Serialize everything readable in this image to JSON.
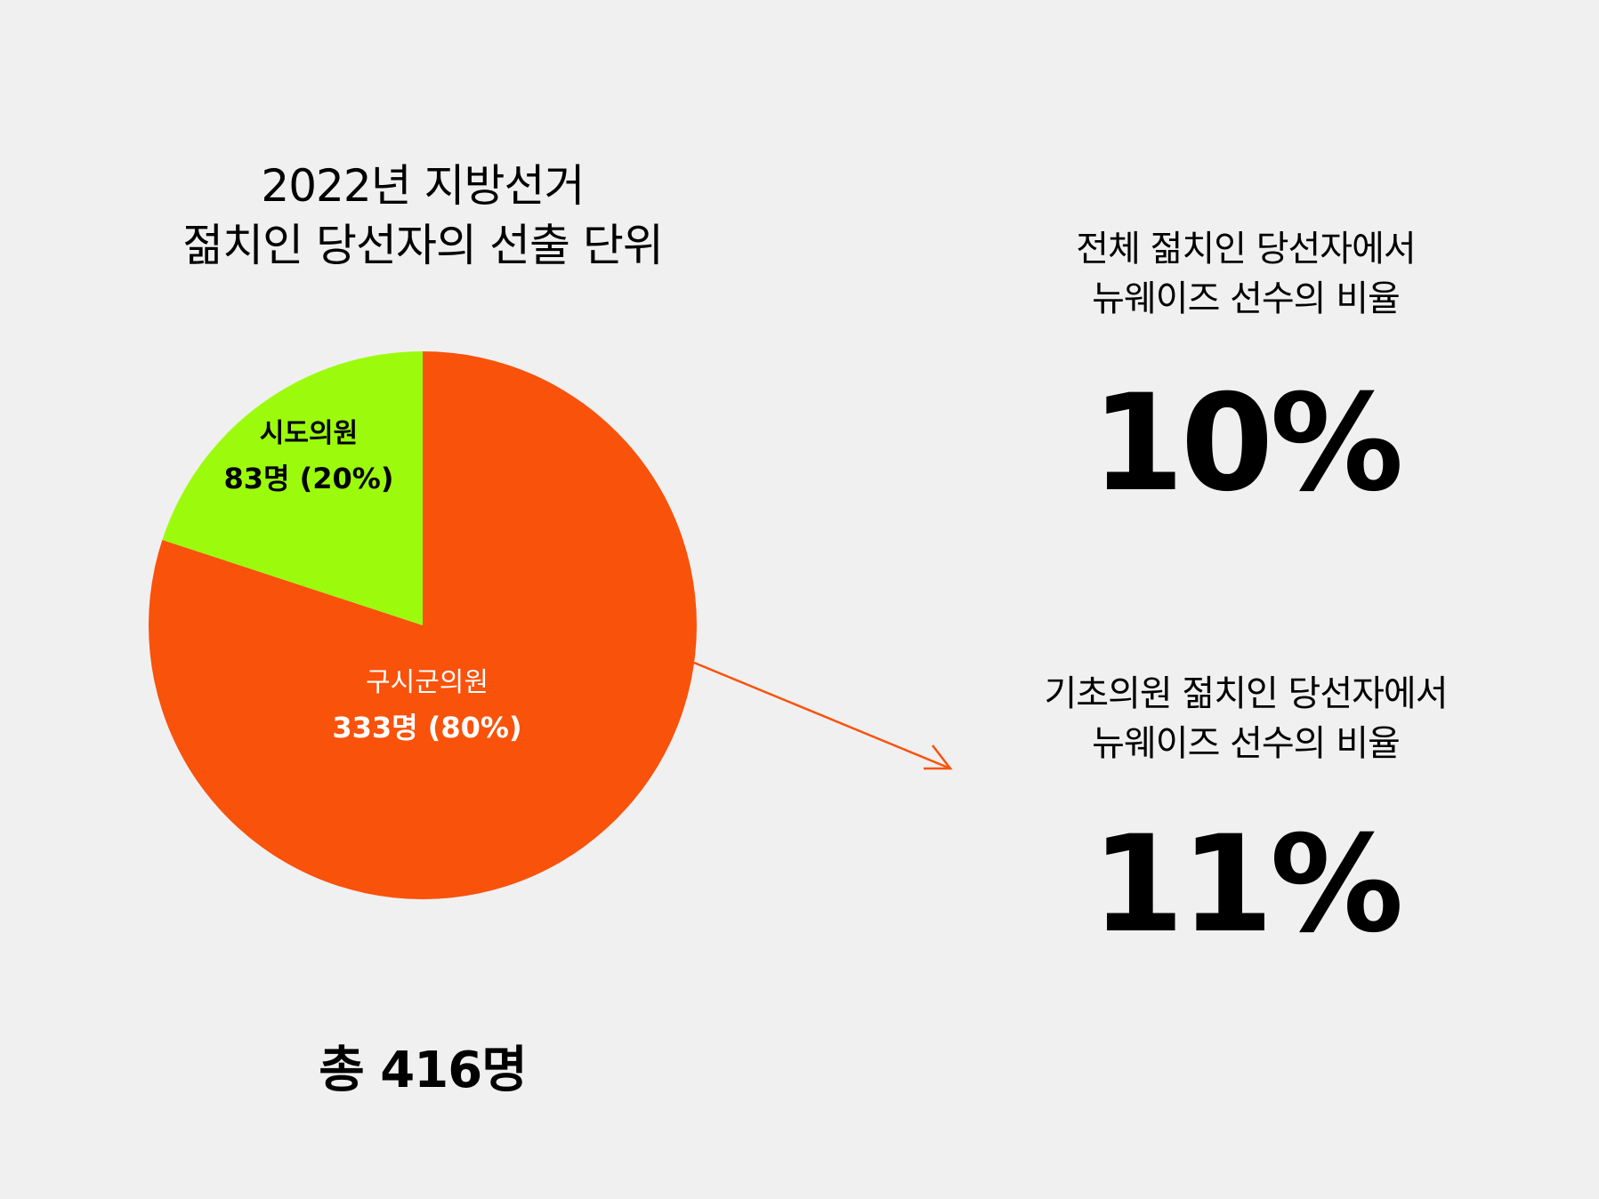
{
  "chart_data": [
    {
      "type": "pie",
      "title_lines": [
        "2022년 지방선거",
        "젊치인 당선자의 선출 단위"
      ],
      "slices": [
        {
          "name": "구시군의원",
          "count_label": "333명 (80%)",
          "value": 333,
          "percent": 80,
          "color": "#f9520b",
          "label_color": "#ffffff"
        },
        {
          "name": "시도의원",
          "count_label": "83명 (20%)",
          "value": 83,
          "percent": 20,
          "color": "#9cfb0d",
          "label_color": "#000000"
        }
      ],
      "start": "12 o'clock, clockwise",
      "total_label": "총 416명"
    }
  ],
  "stats": [
    {
      "caption_lines": [
        "전체 젊치인 당선자에서",
        "뉴웨이즈 선수의 비율"
      ],
      "value": "10%"
    },
    {
      "caption_lines": [
        "기초의원 젊치인 당선자에서",
        "뉴웨이즈 선수의 비율"
      ],
      "value": "11%"
    }
  ],
  "colors": {
    "background": "#f0f0f0",
    "arrow": "#f9520b",
    "text": "#000000"
  }
}
